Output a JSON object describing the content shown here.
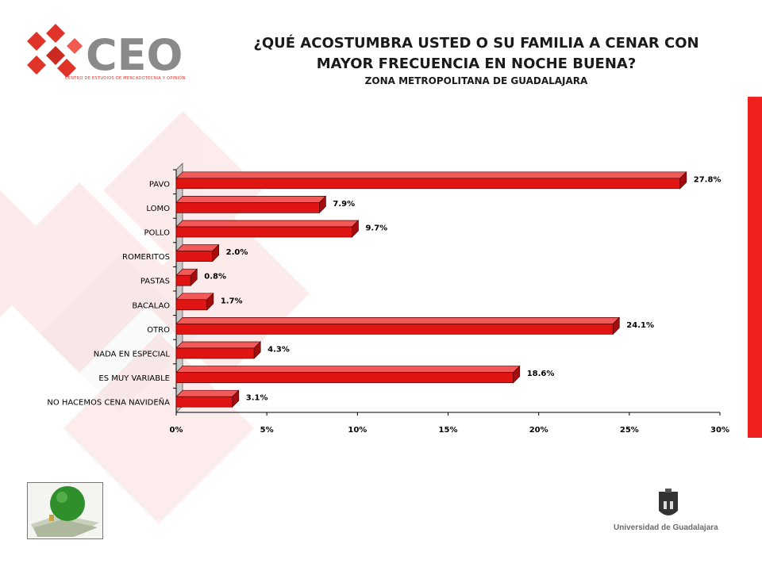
{
  "header": {
    "title_line1": "¿QUÉ ACOSTUMBRA USTED O SU FAMILIA A CENAR CON",
    "title_line2": "MAYOR FRECUENCIA EN NOCHE BUENA?",
    "subtitle": "ZONA METROPOLITANA DE GUADALAJARA"
  },
  "logo": {
    "text": "CEO",
    "tagline": "CENTRO DE ESTUDIOS DE MERCADOTECNIA Y OPINIÓN"
  },
  "footer": {
    "university": "Universidad de Guadalajara"
  },
  "colors": {
    "accent": "#f0211f",
    "bar_front": "#e11414",
    "bar_top": "#f25a5a",
    "bar_side": "#a30d0d",
    "logo_gray": "#8a8a8a",
    "logo_red": "#e0342a"
  },
  "icons": {
    "logo_mark": "red-diamond-cubes-icon",
    "thumbnail": "christmas-ornament-icon",
    "seal": "university-crest-icon"
  },
  "chart_data": {
    "type": "bar",
    "orientation": "horizontal",
    "categories": [
      "PAVO",
      "LOMO",
      "POLLO",
      "ROMERITOS",
      "PASTAS",
      "BACALAO",
      "OTRO",
      "NADA EN ESPECIAL",
      "ES MUY VARIABLE",
      "NO HACEMOS CENA NAVIDEÑA"
    ],
    "values": [
      27.8,
      7.9,
      9.7,
      2.0,
      0.8,
      1.7,
      24.1,
      4.3,
      18.6,
      3.1
    ],
    "data_labels": [
      "27.8%",
      "7.9%",
      "9.7%",
      "2.0%",
      "0.8%",
      "1.7%",
      "24.1%",
      "4.3%",
      "18.6%",
      "3.1%"
    ],
    "xlim": [
      0,
      30
    ],
    "ticks": [
      0,
      5,
      10,
      15,
      20,
      25,
      30
    ],
    "tick_labels": [
      "0%",
      "5%",
      "10%",
      "15%",
      "20%",
      "25%",
      "30%"
    ],
    "grid": false,
    "legend": "none"
  }
}
